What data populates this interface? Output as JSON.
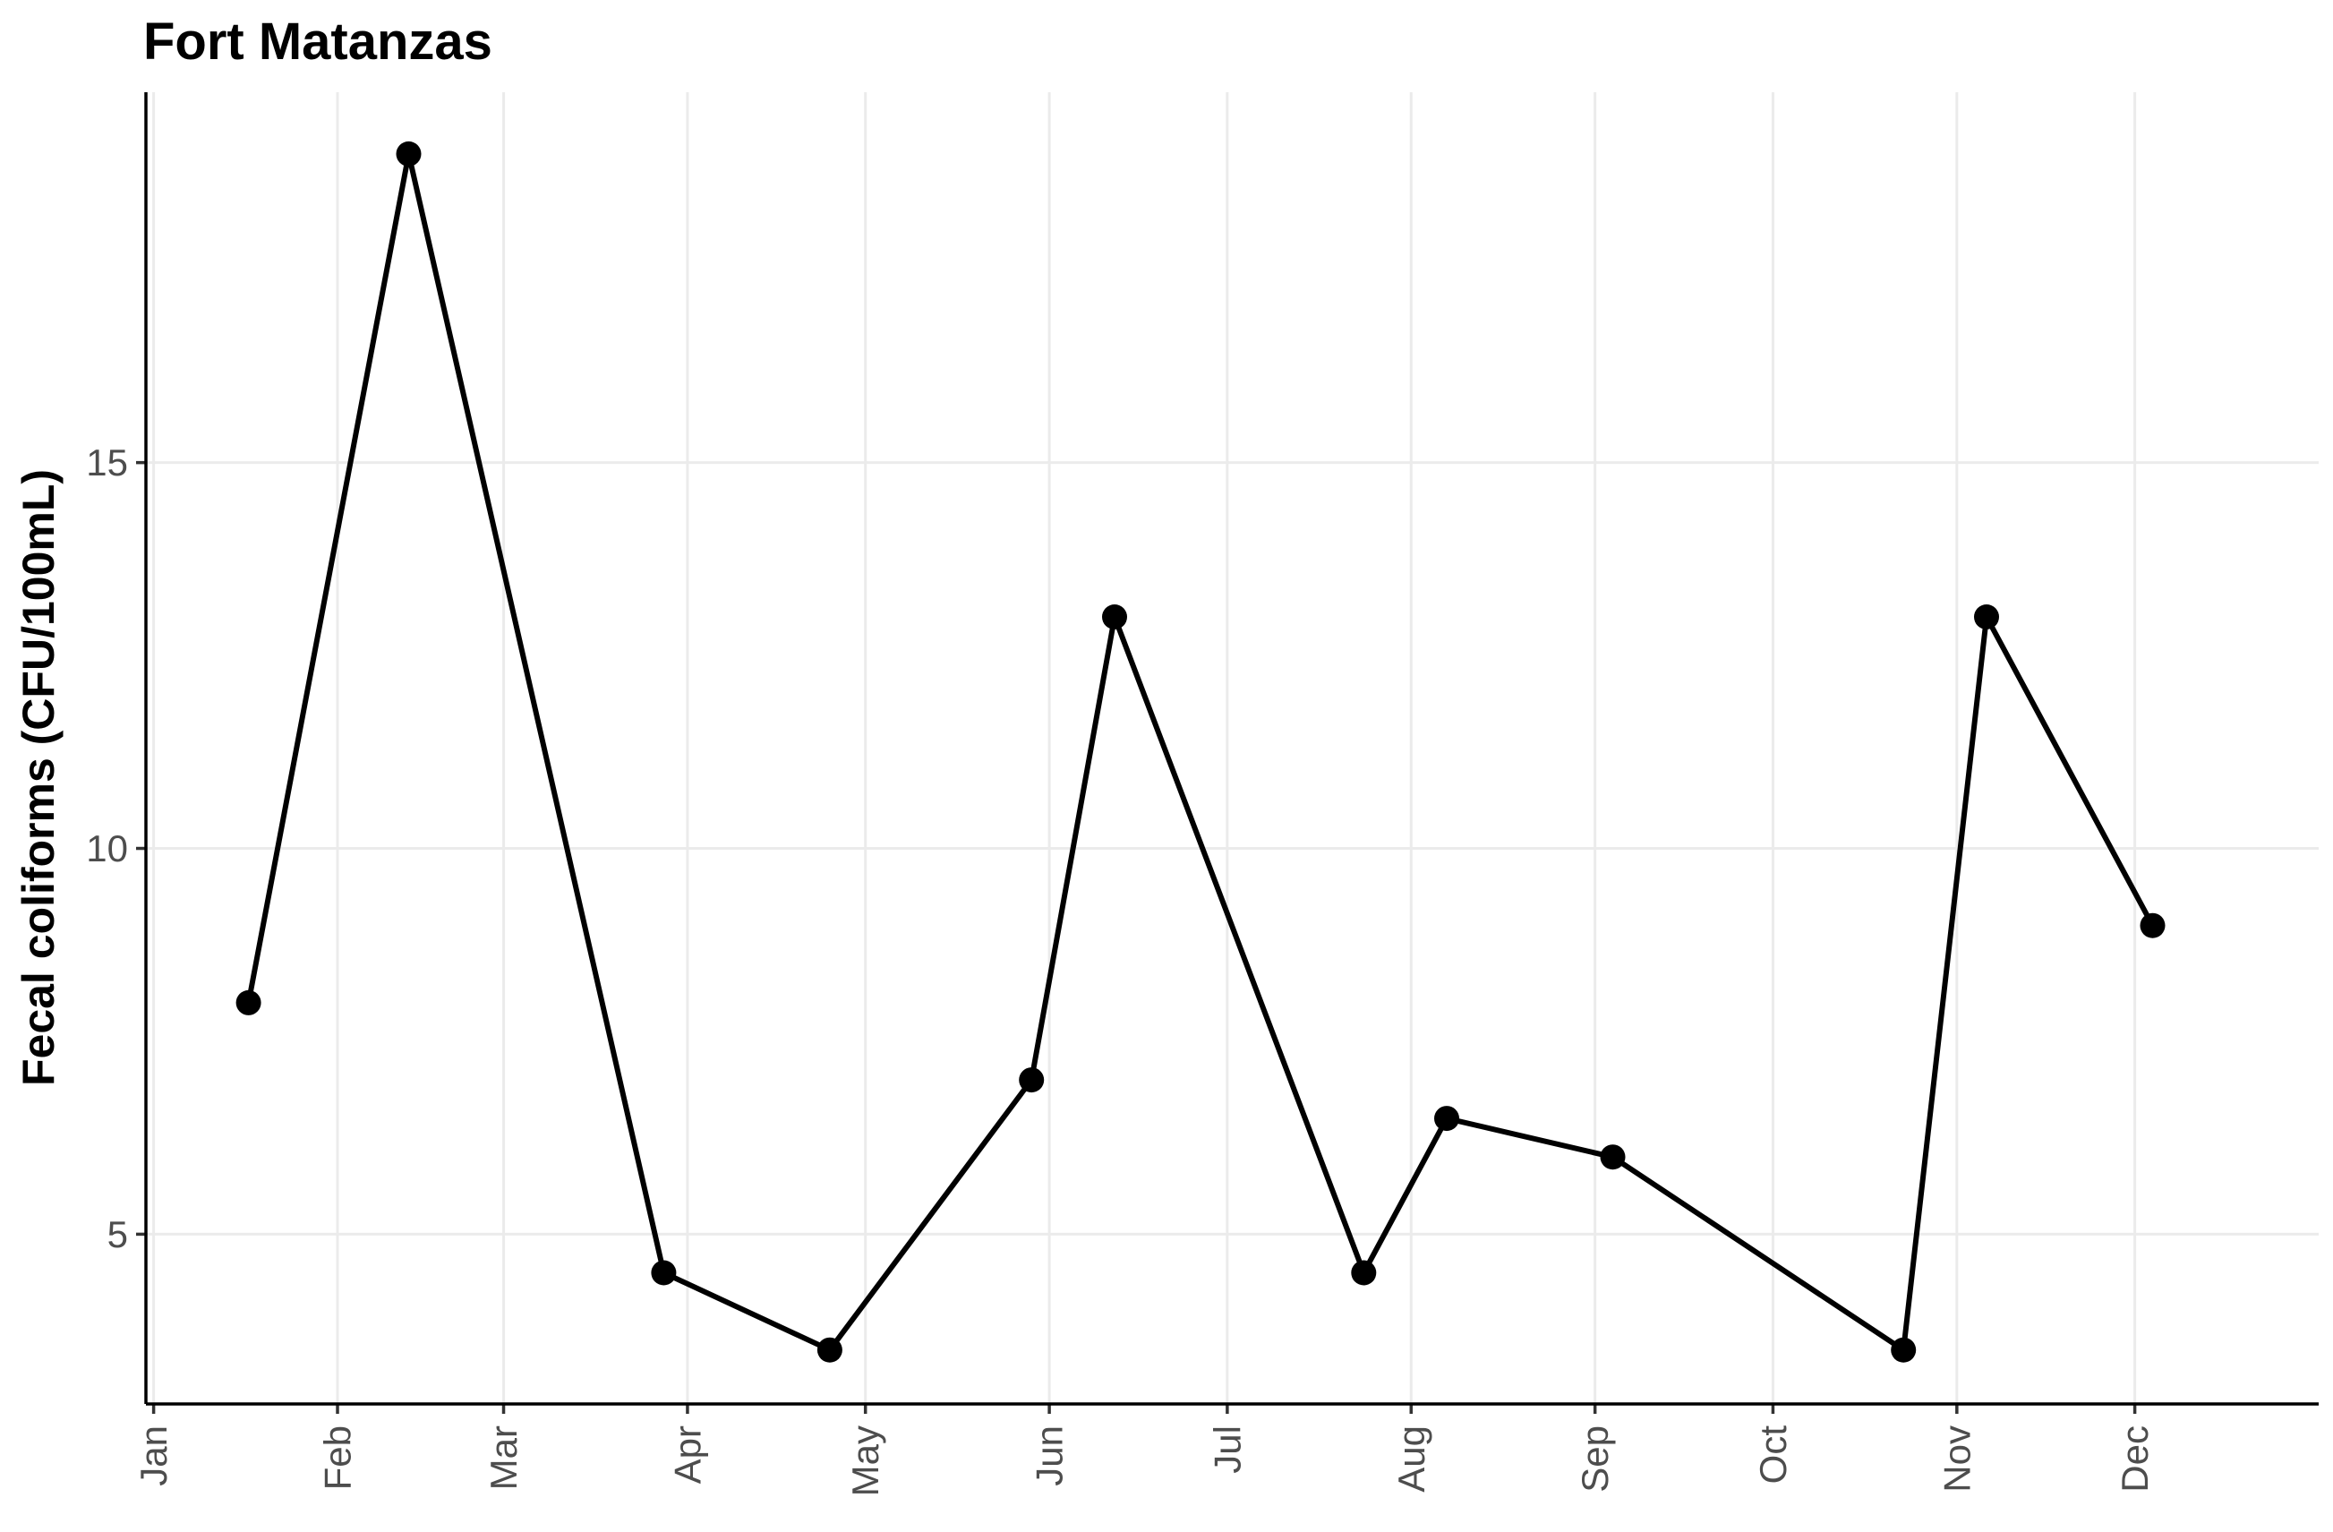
{
  "chart_data": {
    "type": "line",
    "title": "Fort Matanzas",
    "xlabel": "",
    "ylabel": "Fecal coliforms (CFU/100mL)",
    "x_axis": {
      "ticks": [
        {
          "label": "Jan",
          "date": "01-01"
        },
        {
          "label": "Feb",
          "date": "02-01"
        },
        {
          "label": "Mar",
          "date": "03-01"
        },
        {
          "label": "Apr",
          "date": "04-01"
        },
        {
          "label": "May",
          "date": "05-01"
        },
        {
          "label": "Jun",
          "date": "06-01"
        },
        {
          "label": "Jul",
          "date": "07-01"
        },
        {
          "label": "Aug",
          "date": "08-01"
        },
        {
          "label": "Sep",
          "date": "09-01"
        },
        {
          "label": "Oct",
          "date": "10-01"
        },
        {
          "label": "Nov",
          "date": "11-01"
        },
        {
          "label": "Dec",
          "date": "12-01"
        }
      ]
    },
    "y_axis": {
      "ticks": [
        5,
        10,
        15
      ],
      "ylim": [
        2.8,
        19.8
      ]
    },
    "grid": true,
    "legend": "none",
    "series": [
      {
        "color": "#000000",
        "points": [
          {
            "date": "01-17",
            "y": 8
          },
          {
            "date": "02-13",
            "y": 19
          },
          {
            "date": "03-28",
            "y": 4.5
          },
          {
            "date": "04-25",
            "y": 3.5
          },
          {
            "date": "05-29",
            "y": 7
          },
          {
            "date": "06-12",
            "y": 13
          },
          {
            "date": "07-24",
            "y": 4.5
          },
          {
            "date": "08-07",
            "y": 6.5
          },
          {
            "date": "09-04",
            "y": 6
          },
          {
            "date": "10-23",
            "y": 3.5
          },
          {
            "date": "11-06",
            "y": 13
          },
          {
            "date": "12-04",
            "y": 9
          }
        ]
      }
    ]
  }
}
